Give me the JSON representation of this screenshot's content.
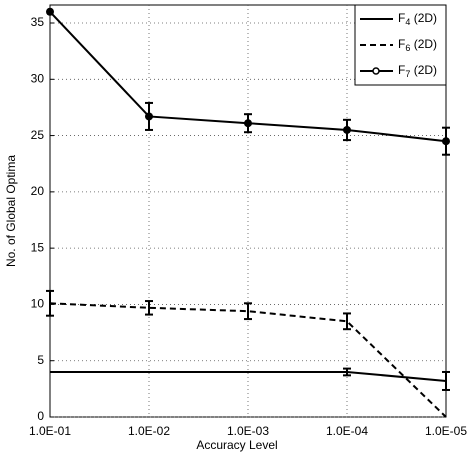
{
  "chart_data": {
    "type": "line",
    "x_label": "Accuracy Level",
    "y_label": "No. of Global Optima",
    "categories": [
      "1.0E-01",
      "1.0E-02",
      "1.0E-03",
      "1.0E-04",
      "1.0E-05"
    ],
    "series": [
      {
        "name": "F4 (2D)",
        "color": "#000000",
        "linestyle": "solid",
        "values": [
          4,
          4,
          4,
          4,
          3.2
        ],
        "errors": [
          null,
          null,
          null,
          0.3,
          0.8
        ]
      },
      {
        "name": "F6 (2D)",
        "color": "#000000",
        "linestyle": "dashed",
        "values": [
          10.1,
          9.7,
          9.4,
          8.5,
          0
        ],
        "errors": [
          1.1,
          0.6,
          0.7,
          0.7,
          null
        ]
      },
      {
        "name": "F7 (2D)",
        "color": "#000000",
        "linestyle": "solid",
        "marker": "circle",
        "values": [
          36,
          26.7,
          26.1,
          25.5,
          24.5
        ],
        "errors": [
          null,
          1.2,
          0.8,
          0.9,
          1.2
        ]
      }
    ],
    "ylim": [
      0,
      36.6
    ],
    "yticks": [
      0,
      5,
      10,
      15,
      20,
      25,
      30,
      35
    ],
    "grid": true,
    "legend": "upper-right"
  }
}
